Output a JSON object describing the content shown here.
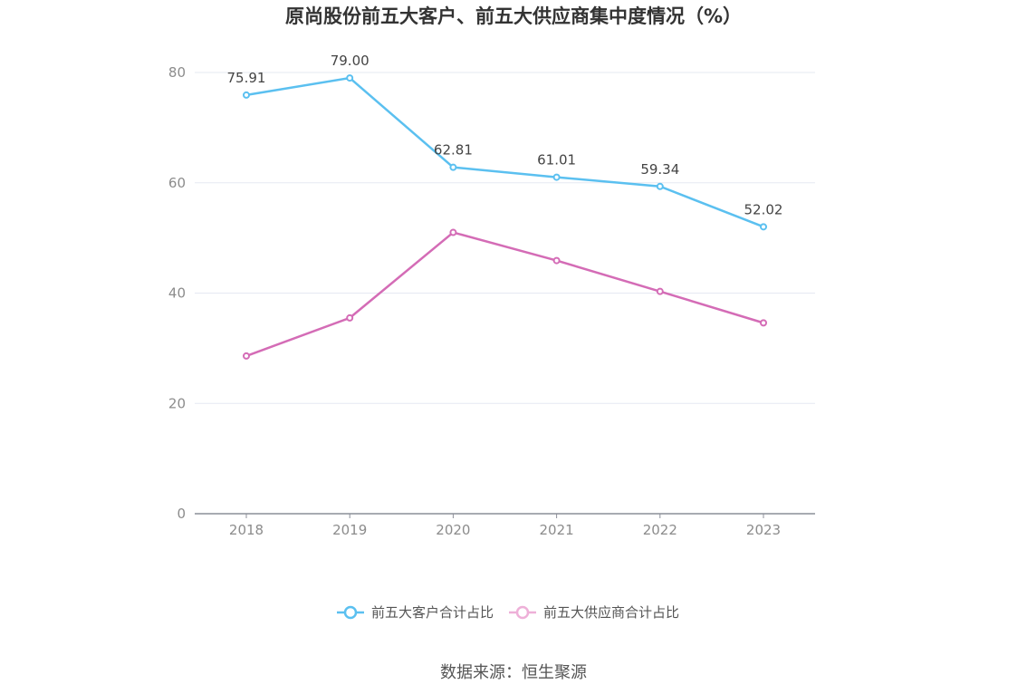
{
  "chart_data": {
    "type": "line",
    "title": "原尚股份前五大客户、前五大供应商集中度情况（%）",
    "categories": [
      "2018",
      "2019",
      "2020",
      "2021",
      "2022",
      "2023"
    ],
    "ylim": [
      0,
      80
    ],
    "yticks": [
      "0",
      "20",
      "40",
      "60",
      "80"
    ],
    "grid": true,
    "legend_position": "bottom",
    "series": [
      {
        "name": "前五大客户合计占比",
        "color": "#5bc0f0",
        "values": [
          75.91,
          79.0,
          62.81,
          61.01,
          59.34,
          52.02
        ],
        "labels": [
          "75.91",
          "79.00",
          "62.81",
          "61.01",
          "59.34",
          "52.02"
        ],
        "show_labels": true
      },
      {
        "name": "前五大供应商合计占比",
        "color": "#d46cb6",
        "legend_color": "#eeb0d8",
        "values": [
          28.6,
          35.5,
          51.0,
          45.9,
          40.3,
          34.6
        ],
        "show_labels": false
      }
    ]
  },
  "source": "数据来源：恒生聚源"
}
